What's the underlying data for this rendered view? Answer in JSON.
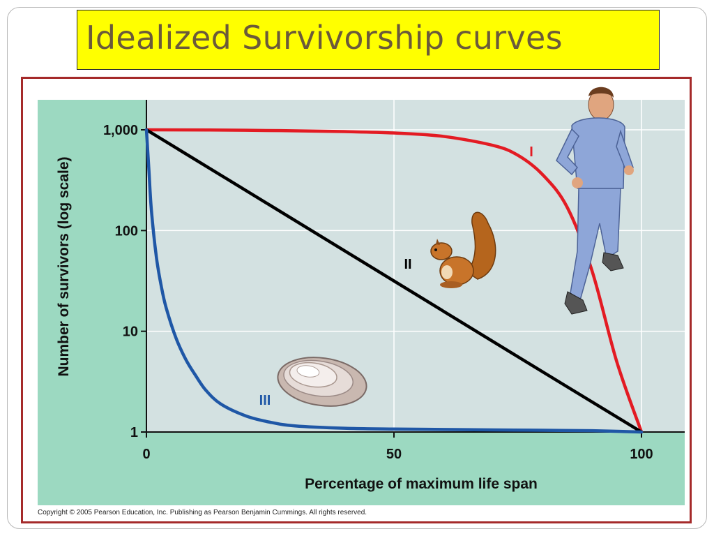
{
  "slide": {
    "title": "Idealized Survivorship curves"
  },
  "copyright": "Copyright © 2005 Pearson Education, Inc. Publishing as Pearson Benjamin Cummings. All rights reserved.",
  "colors": {
    "curve_I": "#e31b23",
    "curve_II": "#000000",
    "curve_III": "#1f57a6",
    "title_bg": "#ffff00",
    "panel": "#9cd9c1",
    "plot_bg": "#d3e1e1"
  },
  "chart_data": {
    "type": "line",
    "title": "",
    "xlabel": "Percentage of maximum life span",
    "ylabel": "Number of survivors (log scale)",
    "y_scale": "log",
    "xlim": [
      0,
      100
    ],
    "ylim": [
      1,
      1000
    ],
    "grid": true,
    "x_ticks": [
      0,
      50,
      100
    ],
    "x_tick_labels": [
      "0",
      "50",
      "100"
    ],
    "y_ticks": [
      1,
      10,
      100,
      1000
    ],
    "y_tick_labels": [
      "1",
      "10",
      "100",
      "1,000"
    ],
    "series": [
      {
        "name": "I",
        "color": "#e31b23",
        "x": [
          0,
          20,
          40,
          50,
          60,
          70,
          75,
          80,
          85,
          90,
          95,
          100
        ],
        "y": [
          1000,
          990,
          960,
          930,
          860,
          700,
          560,
          360,
          170,
          40,
          5,
          1
        ]
      },
      {
        "name": "II",
        "color": "#000000",
        "x": [
          0,
          25,
          50,
          75,
          100
        ],
        "y": [
          1000,
          178,
          31.6,
          5.6,
          1
        ]
      },
      {
        "name": "III",
        "color": "#1f57a6",
        "x": [
          0,
          0.5,
          1,
          2,
          3,
          4,
          6,
          8,
          10,
          12,
          15,
          20,
          25,
          30,
          40,
          50,
          60,
          70,
          80,
          90,
          100
        ],
        "y": [
          1000,
          400,
          160,
          55,
          28,
          17,
          8.5,
          5.2,
          3.6,
          2.6,
          1.9,
          1.45,
          1.25,
          1.15,
          1.09,
          1.07,
          1.06,
          1.05,
          1.04,
          1.03,
          1.0
        ]
      }
    ],
    "annotations": [
      "I",
      "II",
      "III"
    ]
  },
  "icons": {
    "person": "jogging-man-icon",
    "squirrel": "squirrel-icon",
    "oyster": "oyster-shell-icon"
  }
}
